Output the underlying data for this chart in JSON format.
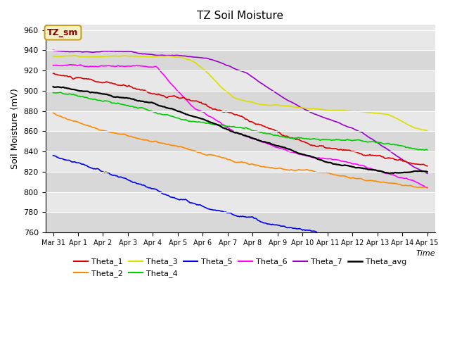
{
  "title": "TZ Soil Moisture",
  "ylabel": "Soil Moisture (mV)",
  "xlabel": "Time",
  "ylim": [
    760,
    965
  ],
  "yticks": [
    760,
    780,
    800,
    820,
    840,
    860,
    880,
    900,
    920,
    940,
    960
  ],
  "background_color": "#e8e8e8",
  "legend_label": "TZ_sm",
  "legend_label_color": "#8B0000",
  "legend_box_facecolor": "#f5f0c8",
  "legend_box_edgecolor": "#c8a020",
  "colors": {
    "Theta_1": "#dd0000",
    "Theta_2": "#ff8800",
    "Theta_3": "#dddd00",
    "Theta_4": "#00cc00",
    "Theta_5": "#0000ee",
    "Theta_6": "#ff00ff",
    "Theta_7": "#9900cc",
    "Theta_avg": "#000000"
  },
  "linewidth": 1.2,
  "linewidth_avg": 1.6,
  "xtick_labels": [
    "Mar 31",
    "Apr 1",
    "Apr 2",
    "Apr 3",
    "Apr 4",
    "Apr 5",
    "Apr 6",
    "Apr 7",
    "Apr 8",
    "Apr 9",
    "Apr 10",
    "Apr 11",
    "Apr 12",
    "Apr 13",
    "Apr 14",
    "Apr 15"
  ],
  "grid_color": "#ffffff",
  "grid_linewidth": 0.8,
  "alt_band_color": "#d8d8d8",
  "plot_bg_color": "#e8e8e8"
}
